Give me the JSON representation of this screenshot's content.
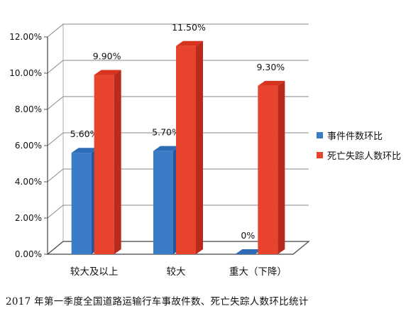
{
  "chart_data": {
    "type": "bar",
    "categories": [
      "较大及以上",
      "较大",
      "重大（下降）"
    ],
    "series": [
      {
        "name": "事件件数环比",
        "values": [
          5.6,
          5.7,
          0.0
        ],
        "labels": [
          "5.60%",
          "5.70%",
          "0%"
        ]
      },
      {
        "name": "死亡失踪人数环比",
        "values": [
          9.9,
          11.5,
          9.3
        ],
        "labels": [
          "9.90%",
          "11.50%",
          "9.30%"
        ]
      }
    ],
    "yticks": [
      "0.00%",
      "2.00%",
      "4.00%",
      "6.00%",
      "8.00%",
      "10.00%",
      "12.00%"
    ],
    "ylim": [
      0,
      12
    ],
    "grid": true,
    "legend_position": "right",
    "colors": {
      "series1_front": "#3a7dc6",
      "series1_side": "#27569a",
      "series1_top": "#2e6cb7",
      "series2_front": "#e8432d",
      "series2_side": "#b82a1c",
      "series2_top": "#d8331f"
    }
  },
  "caption": "2017 年第一季度全国道路运输行车事故件数、死亡失踪人数环比统计"
}
